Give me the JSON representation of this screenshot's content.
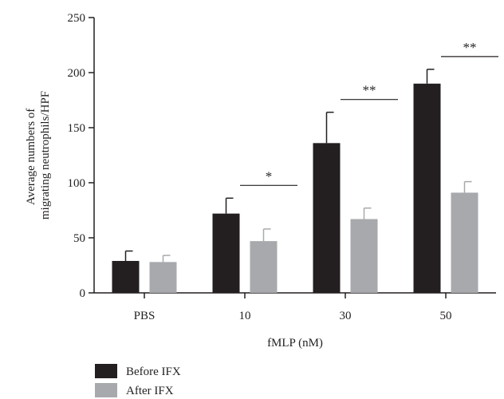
{
  "chart_data": {
    "type": "bar",
    "xlabel": "fMLP (nM)",
    "ylabel": [
      "Average numbers of",
      "migrating neutrophils/HPF"
    ],
    "ylim": [
      0,
      250
    ],
    "yticks": [
      0,
      50,
      100,
      150,
      200,
      250
    ],
    "categories": [
      "PBS",
      "10",
      "30",
      "50"
    ],
    "series": [
      {
        "name": "Before IFX",
        "color": "#231f20",
        "values": [
          29,
          72,
          136,
          190
        ],
        "errors": [
          9,
          14,
          28,
          13
        ]
      },
      {
        "name": "After IFX",
        "color": "#a7a9ac",
        "values": [
          28,
          47,
          67,
          91
        ],
        "errors": [
          6,
          11,
          10,
          10
        ]
      }
    ],
    "significance": [
      {
        "category": "10",
        "label": "*"
      },
      {
        "category": "30",
        "label": "**"
      },
      {
        "category": "50",
        "label": "**"
      }
    ],
    "legend_position": "bottom-left",
    "grid": false
  }
}
